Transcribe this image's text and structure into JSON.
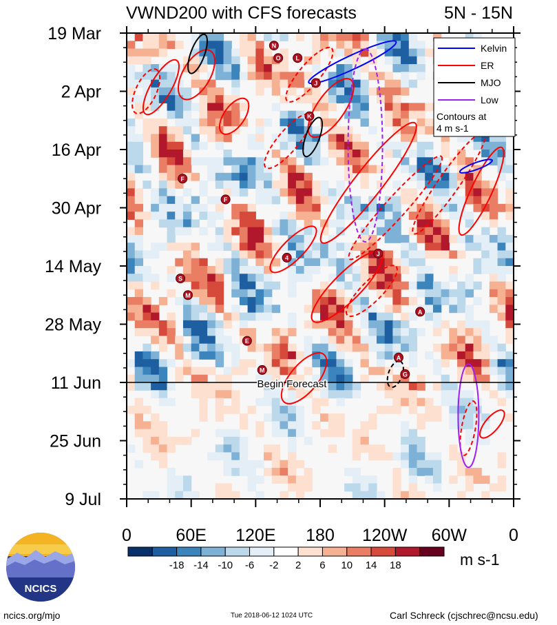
{
  "chart_data": {
    "type": "heatmap",
    "title": "VWND200 with CFS forecasts",
    "region": "5N - 15N",
    "y_tick_labels": [
      "19 Mar",
      "2 Apr",
      "16 Apr",
      "30 Apr",
      "14 May",
      "28 May",
      "11 Jun",
      "25 Jun",
      "9 Jul"
    ],
    "y_range_days": [
      0,
      112
    ],
    "y_tick_days": [
      0,
      14,
      28,
      42,
      56,
      70,
      84,
      98,
      112
    ],
    "x_tick_labels": [
      "0",
      "60E",
      "120E",
      "180",
      "120W",
      "60W",
      "0"
    ],
    "x_range_lon": [
      0,
      360
    ],
    "x_tick_lon": [
      0,
      60,
      120,
      180,
      240,
      300,
      360
    ],
    "forecast_start_day": 84,
    "forecast_label": "Begin Forecast",
    "legend": {
      "items": [
        {
          "name": "Kelvin",
          "color": "#0000ff"
        },
        {
          "name": "ER",
          "color": "#ff0000"
        },
        {
          "name": "MJO",
          "color": "#000000"
        },
        {
          "name": "Low",
          "color": "#a020f0"
        }
      ],
      "note_line1": "Contours at",
      "note_line2": "4 m s-1",
      "placement": "top-right"
    },
    "colorbar": {
      "levels": [
        "-18",
        "-14",
        "-10",
        "-6",
        "-2",
        "2",
        "6",
        "10",
        "14",
        "18"
      ],
      "colors": [
        "#08306b",
        "#1d5fa0",
        "#3c84bc",
        "#7db1d6",
        "#bcd9ec",
        "#e4eef6",
        "#ffffff",
        "#fde0cf",
        "#f6b193",
        "#ea7e65",
        "#d64a3c",
        "#b2182b",
        "#67001f"
      ],
      "units": "m s-1"
    },
    "storms": [
      {
        "label": "N",
        "lon": 137,
        "day": 3
      },
      {
        "label": "O",
        "lon": 141,
        "day": 6
      },
      {
        "label": "L",
        "lon": 159,
        "day": 6
      },
      {
        "label": "J",
        "lon": 176,
        "day": 12
      },
      {
        "label": "K",
        "lon": 170,
        "day": 20
      },
      {
        "label": "F",
        "lon": 52,
        "day": 35
      },
      {
        "label": "F",
        "lon": 92,
        "day": 40
      },
      {
        "label": "J",
        "lon": 234,
        "day": 53
      },
      {
        "label": "4",
        "lon": 149,
        "day": 54
      },
      {
        "label": "S",
        "lon": 50,
        "day": 59
      },
      {
        "label": "M",
        "lon": 57,
        "day": 63
      },
      {
        "label": "A",
        "lon": 273,
        "day": 67
      },
      {
        "label": "E",
        "lon": 112,
        "day": 74
      },
      {
        "label": "A",
        "lon": 253,
        "day": 78
      },
      {
        "label": "M",
        "lon": 126,
        "day": 81
      },
      {
        "label": "G",
        "lon": 259,
        "day": 82
      }
    ]
  },
  "footer": {
    "logo_text": "NCICS",
    "site": "ncics.org/mjo",
    "timestamp": "Tue 2018-06-12 1024 UTC",
    "author": "Carl Schreck (cjschrec@ncsu.edu)"
  }
}
